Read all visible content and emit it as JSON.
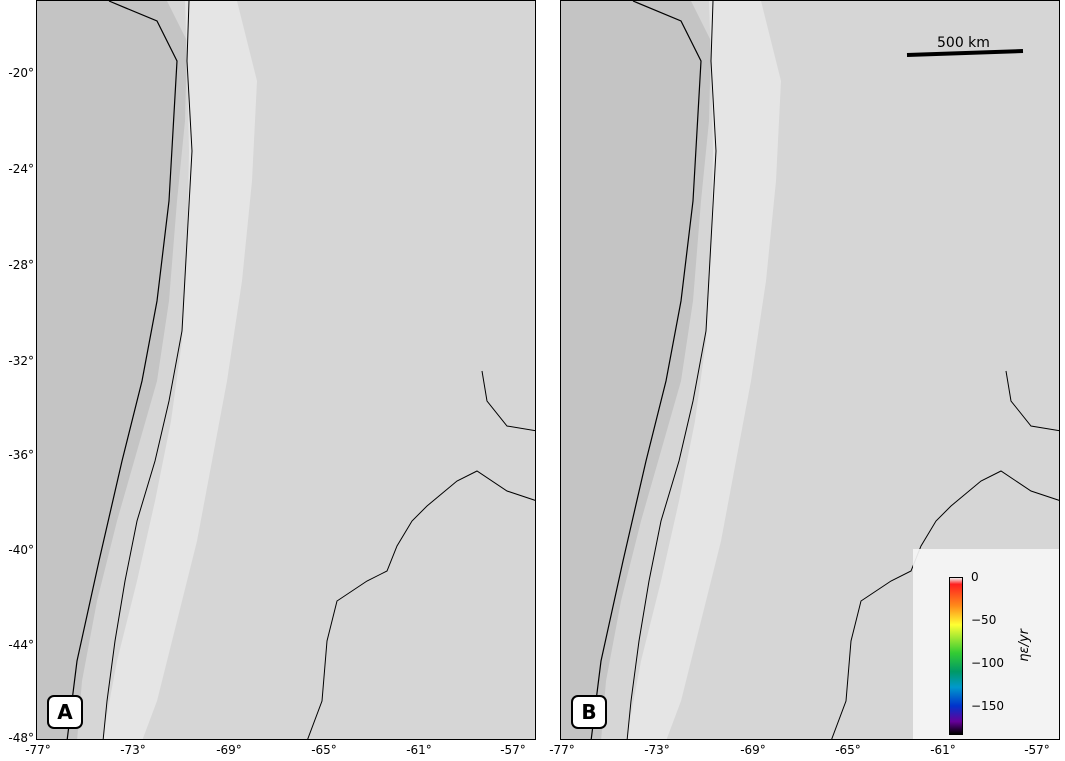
{
  "panels": [
    {
      "label": "A"
    },
    {
      "label": "B"
    }
  ],
  "axes": {
    "y_ticks": [
      "-20°",
      "-24°",
      "-28°",
      "-32°",
      "-36°",
      "-40°",
      "-44°",
      "-48°"
    ],
    "x_ticks": [
      "-77°",
      "-73°",
      "-69°",
      "-65°",
      "-61°",
      "-57°"
    ]
  },
  "scale_bar": {
    "label": "500 km"
  },
  "colorbar": {
    "ticks": [
      "0",
      "−50",
      "−100",
      "−150"
    ],
    "label": "ηε/yr",
    "colors": [
      "#f0f0f0",
      "#ff2020",
      "#ff8c1a",
      "#ffff33",
      "#33cc33",
      "#009966",
      "#0099cc",
      "#0033cc",
      "#660099",
      "#000000"
    ]
  },
  "map": {
    "lon_range": [
      -77,
      -56
    ],
    "lat_range": [
      -48,
      -17.5
    ],
    "background": "#d9d9d9",
    "ocean_shade": "#c8c8c8",
    "andes_shade": "#bcbcbc"
  }
}
